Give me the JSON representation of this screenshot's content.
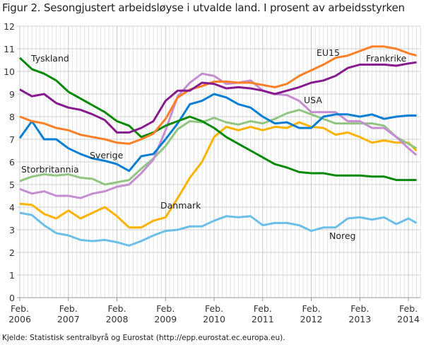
{
  "chart_data": {
    "type": "line",
    "title": "Figur 2. Sesongjustert arbeidsløyse i utvalde land. I prosent av arbeidsstyrken",
    "source": "Kjelde: Statistisk sentralbyrå og Eurostat (http://epp.eurostat.ec.europa.eu).",
    "xlabel": "",
    "ylabel": "",
    "ylim": [
      0,
      12
    ],
    "yticks": [
      "0",
      "1",
      "2",
      "3",
      "4",
      "5",
      "6",
      "7",
      "8",
      "9",
      "10",
      "11",
      "12"
    ],
    "x_unit": "months since Feb. 2006",
    "xticks": [
      {
        "month": 0,
        "line1": "Feb.",
        "line2": "2006"
      },
      {
        "month": 12,
        "line1": "Feb.",
        "line2": "2007"
      },
      {
        "month": 24,
        "line1": "Feb.",
        "line2": "2008"
      },
      {
        "month": 36,
        "line1": "Feb.",
        "line2": "2009"
      },
      {
        "month": 48,
        "line1": "Feb.",
        "line2": "2010"
      },
      {
        "month": 60,
        "line1": "Feb.",
        "line2": "2011"
      },
      {
        "month": 72,
        "line1": "Feb.",
        "line2": "2012"
      },
      {
        "month": 84,
        "line1": "Feb.",
        "line2": "2013"
      },
      {
        "month": 96,
        "line1": "Feb.",
        "line2": "2014"
      }
    ],
    "grid": true,
    "legend": "inline labels",
    "x": [
      0,
      3,
      6,
      9,
      12,
      15,
      18,
      21,
      24,
      27,
      30,
      33,
      36,
      39,
      42,
      45,
      48,
      51,
      54,
      57,
      60,
      63,
      66,
      69,
      72,
      75,
      78,
      81,
      84,
      87,
      90,
      93,
      96,
      98
    ],
    "series": [
      {
        "name": "Tyskland",
        "color": "#0a8a0a",
        "values": [
          10.6,
          10.1,
          9.9,
          9.6,
          9.1,
          8.8,
          8.5,
          8.2,
          7.8,
          7.6,
          7.1,
          7.3,
          7.6,
          7.8,
          8.0,
          7.8,
          7.5,
          7.1,
          6.8,
          6.5,
          6.2,
          5.9,
          5.75,
          5.55,
          5.5,
          5.5,
          5.4,
          5.4,
          5.4,
          5.35,
          5.35,
          5.2,
          5.2,
          5.2
        ]
      },
      {
        "name": "Frankrike",
        "color": "#861a8e",
        "values": [
          9.2,
          8.9,
          9.0,
          8.6,
          8.4,
          8.3,
          8.1,
          7.85,
          7.3,
          7.3,
          7.5,
          7.8,
          8.7,
          9.15,
          9.15,
          9.5,
          9.45,
          9.25,
          9.3,
          9.25,
          9.15,
          9.0,
          9.15,
          9.3,
          9.5,
          9.6,
          9.8,
          10.15,
          10.3,
          10.3,
          10.3,
          10.25,
          10.35,
          10.4
        ]
      },
      {
        "name": "EU15",
        "color": "#ff7f27",
        "values": [
          8.0,
          7.8,
          7.7,
          7.5,
          7.4,
          7.2,
          7.1,
          7.0,
          6.85,
          6.8,
          7.0,
          7.25,
          7.9,
          8.85,
          9.2,
          9.35,
          9.55,
          9.55,
          9.5,
          9.5,
          9.4,
          9.3,
          9.45,
          9.8,
          10.05,
          10.3,
          10.6,
          10.7,
          10.9,
          11.1,
          11.1,
          11.0,
          10.8,
          10.7
        ]
      },
      {
        "name": "USA",
        "color": "#c68ed2",
        "values": [
          4.8,
          4.6,
          4.7,
          4.5,
          4.5,
          4.4,
          4.6,
          4.7,
          4.9,
          5.0,
          5.5,
          6.1,
          7.4,
          8.9,
          9.5,
          9.9,
          9.8,
          9.45,
          9.5,
          9.6,
          9.15,
          9.0,
          8.95,
          8.7,
          8.2,
          8.2,
          8.2,
          7.8,
          7.8,
          7.5,
          7.5,
          7.1,
          6.6,
          6.3
        ]
      },
      {
        "name": "Storbritannia",
        "color": "#91c682",
        "values": [
          5.15,
          5.35,
          5.45,
          5.4,
          5.45,
          5.3,
          5.25,
          5.0,
          5.1,
          5.2,
          5.7,
          6.15,
          6.7,
          7.45,
          7.8,
          7.75,
          7.95,
          7.75,
          7.65,
          7.8,
          7.7,
          7.9,
          8.15,
          8.3,
          8.1,
          7.9,
          7.7,
          7.7,
          7.7,
          7.7,
          7.6,
          7.1,
          6.8,
          6.6
        ]
      },
      {
        "name": "Sverige",
        "color": "#0a7fd4",
        "values": [
          7.05,
          7.8,
          7.0,
          7.0,
          6.6,
          6.35,
          6.15,
          6.05,
          5.9,
          5.6,
          6.25,
          6.35,
          7.0,
          7.7,
          8.55,
          8.7,
          9.0,
          8.85,
          8.55,
          8.4,
          8.0,
          7.7,
          7.75,
          7.5,
          7.5,
          8.0,
          8.1,
          8.1,
          8.0,
          8.1,
          7.9,
          8.0,
          8.05,
          8.05
        ]
      },
      {
        "name": "Danmark",
        "color": "#ffb300",
        "values": [
          4.15,
          4.1,
          3.7,
          3.5,
          3.85,
          3.5,
          3.75,
          4.0,
          3.6,
          3.1,
          3.1,
          3.4,
          3.55,
          4.4,
          5.3,
          6.0,
          7.1,
          7.55,
          7.4,
          7.55,
          7.4,
          7.55,
          7.5,
          7.75,
          7.55,
          7.5,
          7.2,
          7.3,
          7.1,
          6.85,
          6.95,
          6.85,
          6.85,
          6.5
        ]
      },
      {
        "name": "Noreg",
        "color": "#6cbfe9",
        "values": [
          3.75,
          3.65,
          3.2,
          2.85,
          2.75,
          2.55,
          2.5,
          2.55,
          2.45,
          2.3,
          2.5,
          2.75,
          2.95,
          3.0,
          3.15,
          3.15,
          3.4,
          3.6,
          3.55,
          3.6,
          3.2,
          3.3,
          3.3,
          3.2,
          2.95,
          3.1,
          3.1,
          3.5,
          3.55,
          3.45,
          3.55,
          3.25,
          3.5,
          3.3
        ]
      }
    ]
  }
}
